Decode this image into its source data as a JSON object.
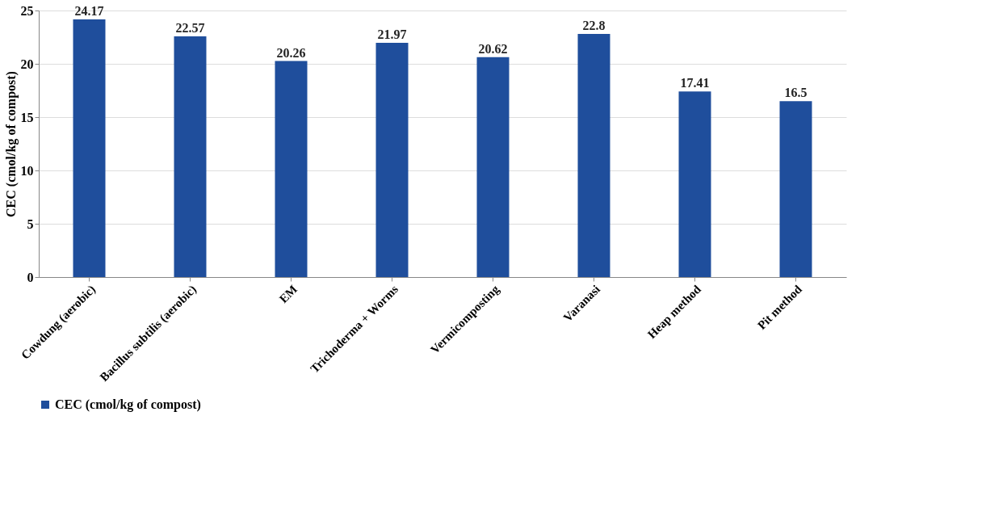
{
  "chart_data": {
    "type": "bar",
    "ylabel": "CEC (cmol/kg of compost)",
    "categories": [
      "Cowdung (aerobic)",
      "Bacillus subtilis (aerobic)",
      "EM",
      "Trichoderma + Worms",
      "Vermicomposting",
      "Varanasi",
      "Heap method",
      "Pit method"
    ],
    "series": [
      {
        "name": "CEC (cmol/kg of compost)",
        "color": "#1f4e9c",
        "values": [
          24.17,
          22.57,
          20.26,
          21.97,
          20.62,
          22.8,
          17.41,
          16.5
        ]
      }
    ],
    "ylim": [
      0,
      25
    ],
    "yticks": [
      0,
      5,
      10,
      15,
      20,
      25
    ],
    "grid": "y",
    "legend": "bottom",
    "data_labels": true
  }
}
